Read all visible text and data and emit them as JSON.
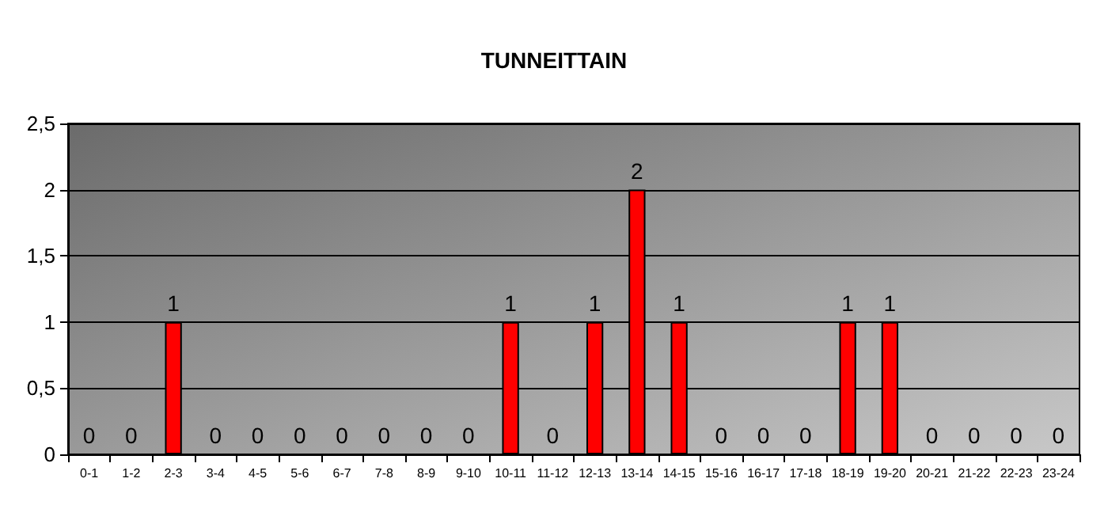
{
  "chart_data": {
    "type": "bar",
    "title": "TUNNEITTAIN",
    "categories": [
      "0-1",
      "1-2",
      "2-3",
      "3-4",
      "4-5",
      "5-6",
      "6-7",
      "7-8",
      "8-9",
      "9-10",
      "10-11",
      "11-12",
      "12-13",
      "13-14",
      "14-15",
      "15-16",
      "16-17",
      "17-18",
      "18-19",
      "19-20",
      "20-21",
      "21-22",
      "22-23",
      "23-24"
    ],
    "values": [
      0,
      0,
      1,
      0,
      0,
      0,
      0,
      0,
      0,
      0,
      1,
      0,
      1,
      2,
      1,
      0,
      0,
      0,
      1,
      1,
      0,
      0,
      0,
      0
    ],
    "color": "#ff0000",
    "ylim": [
      0,
      2.5
    ],
    "yticks": [
      0,
      {
        "value": 0.5,
        "label": "0,5"
      },
      1,
      {
        "value": 1.5,
        "label": "1,5"
      },
      2,
      {
        "value": 2.5,
        "label": "2,5"
      }
    ],
    "grid": "y",
    "data_labels": true
  }
}
